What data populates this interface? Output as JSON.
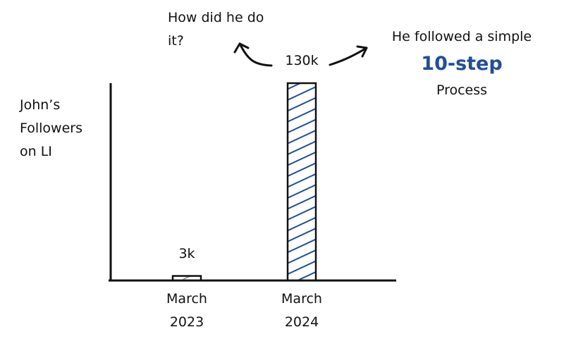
{
  "chart_data": {
    "type": "bar",
    "y_label": "John’s Followers on LI",
    "categories": [
      "March 2023",
      "March 2024"
    ],
    "values": [
      3000,
      130000
    ],
    "value_labels": [
      "3k",
      "130k"
    ],
    "colors": [
      "#8a8a8a",
      "#1f4e9c"
    ],
    "ylim": [
      0,
      130000
    ],
    "annotations": [
      "How did he do it?",
      "He followed a simple",
      "10-step",
      "Process"
    ]
  }
}
